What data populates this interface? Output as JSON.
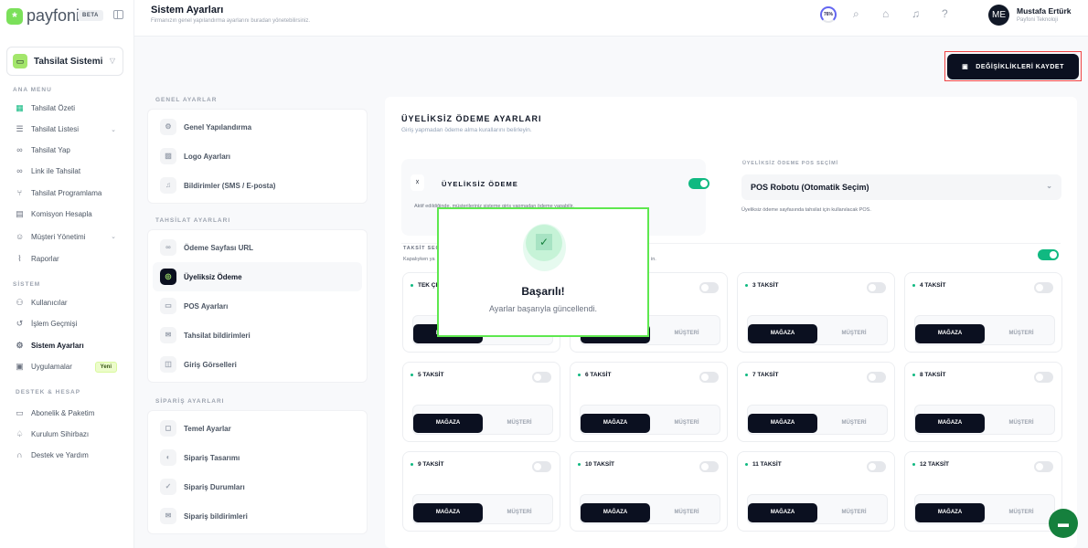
{
  "brand": {
    "name": "payfoni",
    "badge": "BETA"
  },
  "system_selector": {
    "label": "Tahsilat Sistemi"
  },
  "sidebar": {
    "sections": [
      "ANA MENU",
      "SİSTEM",
      "DESTEK & HESAP"
    ],
    "main": [
      {
        "label": "Tahsilat Özeti",
        "icon": "grid-icon"
      },
      {
        "label": "Tahsilat Listesi",
        "icon": "list-icon"
      },
      {
        "label": "Tahsilat Yap",
        "icon": "link-icon"
      },
      {
        "label": "Link ile Tahsilat",
        "icon": "link-icon"
      },
      {
        "label": "Tahsilat Programlama",
        "icon": "branch-icon"
      },
      {
        "label": "Komisyon Hesapla",
        "icon": "calculator-icon"
      },
      {
        "label": "Müşteri Yönetimi",
        "icon": "users-icon"
      },
      {
        "label": "Raporlar",
        "icon": "chart-icon"
      }
    ],
    "system": [
      {
        "label": "Kullanıcılar"
      },
      {
        "label": "İşlem Geçmişi"
      },
      {
        "label": "Sistem Ayarları"
      },
      {
        "label": "Uygulamalar",
        "badge": "Yeni"
      }
    ],
    "support": [
      {
        "label": "Abonelik & Paketim"
      },
      {
        "label": "Kurulum Sihirbazı"
      },
      {
        "label": "Destek ve Yardım"
      }
    ]
  },
  "header": {
    "title": "Sistem Ayarları",
    "subtitle": "Firmanızın genel yapılandırma ayarlarını buradan yönetebilirsiniz.",
    "progress": "76%",
    "user": {
      "initials": "ME",
      "name": "Mustafa Ertürk",
      "company": "Payfoni Teknoloji"
    }
  },
  "save_button": "DEĞİŞİKLİKLERİ KAYDET",
  "settings_nav": [
    {
      "title": "GENEL AYARLAR",
      "items": [
        "Genel Yapılandırma",
        "Logo Ayarları",
        "Bildirimler (SMS / E-posta)"
      ]
    },
    {
      "title": "TAHSİLAT AYARLARI",
      "items": [
        "Ödeme Sayfası URL",
        "Üyeliksiz Ödeme",
        "POS Ayarları",
        "Tahsilat bildirimleri",
        "Giriş Görselleri"
      ]
    },
    {
      "title": "SİPARİŞ AYARLARI",
      "items": [
        "Temel Ayarlar",
        "Sipariş Tasarımı",
        "Sipariş Durumları",
        "Sipariş bildirimleri"
      ]
    }
  ],
  "panel": {
    "title": "ÜYELİKSİZ ÖDEME AYARLARI",
    "subtitle": "Giriş yapmadan ödeme alma kurallarını belirleyin.",
    "guest": {
      "title": "ÜYELİKSİZ ÖDEME",
      "desc": "Aktif edildiğinde, müşterileriniz sisteme giriş yapmadan ödeme yapabilir.",
      "enabled": true
    },
    "pos": {
      "label": "ÜYELİKSİZ ÖDEME POS SEÇİMİ",
      "value": "POS Robotu (Otomatik Seçim)",
      "hint": "Üyeliksiz ödeme sayfasında tahsilat için kullanılacak POS."
    },
    "installments": {
      "title": "TAKSİT SEÇ",
      "desc": "Kapalıyken ya",
      "desc_end": "in.",
      "enabled": true,
      "options": [
        "MAĞAZA",
        "MÜŞTERİ"
      ],
      "cards": [
        {
          "label": "TEK ÇEK",
          "on": false
        },
        {
          "label": "",
          "on": false
        },
        {
          "label": "3 TAKSİT",
          "on": false
        },
        {
          "label": "4 TAKSİT",
          "on": false
        },
        {
          "label": "5 TAKSİT",
          "on": false
        },
        {
          "label": "6 TAKSİT",
          "on": false
        },
        {
          "label": "7 TAKSİT",
          "on": false
        },
        {
          "label": "8 TAKSİT",
          "on": false
        },
        {
          "label": "9 TAKSİT",
          "on": false
        },
        {
          "label": "10 TAKSİT",
          "on": false
        },
        {
          "label": "11 TAKSİT",
          "on": false
        },
        {
          "label": "12 TAKSİT",
          "on": false
        }
      ]
    }
  },
  "modal": {
    "title": "Başarılı!",
    "message": "Ayarlar başarıyla güncellendi."
  },
  "colors": {
    "accent": "#10b981",
    "brand": "#7be05a",
    "dark": "#0b1020"
  }
}
